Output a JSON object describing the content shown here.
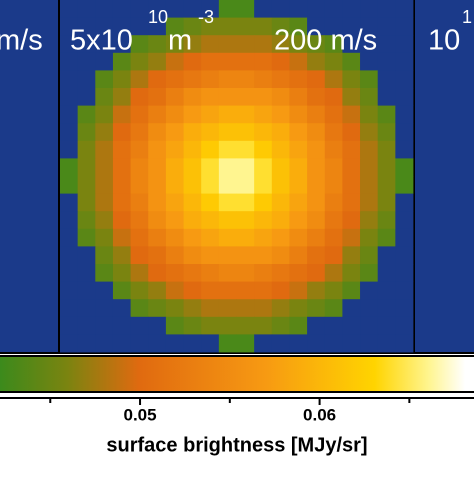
{
  "chart_data": {
    "type": "heatmap",
    "panel_labels": {
      "left": "m/s",
      "center_base": "5x10",
      "center_exp": "10",
      "center_unit": "m",
      "center_unit_exp": "-3",
      "center_speed": "200 m/s",
      "right_base": "10",
      "right_exp": "1"
    },
    "z": [
      [
        0,
        0,
        0,
        0,
        0,
        0,
        0,
        0,
        0,
        0.043,
        0.043,
        0,
        0,
        0,
        0,
        0,
        0,
        0,
        0,
        0
      ],
      [
        0,
        0,
        0,
        0,
        0,
        0,
        0.044,
        0.045,
        0.046,
        0.046,
        0.046,
        0.046,
        0.045,
        0.044,
        0,
        0,
        0,
        0,
        0,
        0
      ],
      [
        0,
        0,
        0,
        0,
        0.044,
        0.045,
        0.046,
        0.047,
        0.048,
        0.048,
        0.048,
        0.048,
        0.047,
        0.046,
        0.045,
        0.044,
        0,
        0,
        0,
        0
      ],
      [
        0,
        0,
        0,
        0.044,
        0.046,
        0.047,
        0.049,
        0.05,
        0.051,
        0.051,
        0.051,
        0.051,
        0.05,
        0.049,
        0.047,
        0.046,
        0.044,
        0,
        0,
        0
      ],
      [
        0,
        0,
        0.044,
        0.046,
        0.048,
        0.05,
        0.051,
        0.052,
        0.053,
        0.054,
        0.054,
        0.053,
        0.052,
        0.051,
        0.05,
        0.048,
        0.046,
        0.044,
        0,
        0
      ],
      [
        0,
        0,
        0.045,
        0.047,
        0.05,
        0.051,
        0.053,
        0.055,
        0.056,
        0.056,
        0.056,
        0.056,
        0.055,
        0.053,
        0.051,
        0.05,
        0.047,
        0.045,
        0,
        0
      ],
      [
        0,
        0.044,
        0.046,
        0.049,
        0.051,
        0.053,
        0.055,
        0.057,
        0.058,
        0.059,
        0.059,
        0.058,
        0.057,
        0.055,
        0.053,
        0.051,
        0.049,
        0.046,
        0.044,
        0
      ],
      [
        0,
        0.045,
        0.047,
        0.05,
        0.052,
        0.055,
        0.057,
        0.059,
        0.06,
        0.061,
        0.061,
        0.06,
        0.059,
        0.057,
        0.055,
        0.052,
        0.05,
        0.047,
        0.045,
        0
      ],
      [
        0,
        0.046,
        0.048,
        0.051,
        0.053,
        0.056,
        0.058,
        0.06,
        0.062,
        0.064,
        0.064,
        0.062,
        0.06,
        0.058,
        0.056,
        0.053,
        0.051,
        0.048,
        0.046,
        0
      ],
      [
        0.043,
        0.046,
        0.048,
        0.051,
        0.054,
        0.056,
        0.059,
        0.061,
        0.064,
        0.066,
        0.066,
        0.064,
        0.061,
        0.059,
        0.056,
        0.054,
        0.051,
        0.048,
        0.046,
        0.043
      ],
      [
        0.043,
        0.046,
        0.048,
        0.051,
        0.054,
        0.056,
        0.059,
        0.061,
        0.064,
        0.066,
        0.066,
        0.064,
        0.061,
        0.059,
        0.056,
        0.054,
        0.051,
        0.048,
        0.046,
        0.043
      ],
      [
        0,
        0.046,
        0.048,
        0.051,
        0.053,
        0.056,
        0.058,
        0.06,
        0.062,
        0.064,
        0.064,
        0.062,
        0.06,
        0.058,
        0.056,
        0.053,
        0.051,
        0.048,
        0.046,
        0
      ],
      [
        0,
        0.045,
        0.047,
        0.05,
        0.052,
        0.055,
        0.057,
        0.059,
        0.06,
        0.061,
        0.061,
        0.06,
        0.059,
        0.057,
        0.055,
        0.052,
        0.05,
        0.047,
        0.045,
        0
      ],
      [
        0,
        0.044,
        0.046,
        0.049,
        0.051,
        0.053,
        0.055,
        0.057,
        0.058,
        0.059,
        0.059,
        0.058,
        0.057,
        0.055,
        0.053,
        0.051,
        0.049,
        0.046,
        0.044,
        0
      ],
      [
        0,
        0,
        0.045,
        0.047,
        0.05,
        0.051,
        0.053,
        0.055,
        0.056,
        0.056,
        0.056,
        0.056,
        0.055,
        0.053,
        0.051,
        0.05,
        0.047,
        0.045,
        0,
        0
      ],
      [
        0,
        0,
        0.044,
        0.046,
        0.048,
        0.05,
        0.051,
        0.052,
        0.053,
        0.054,
        0.054,
        0.053,
        0.052,
        0.051,
        0.05,
        0.048,
        0.046,
        0.044,
        0,
        0
      ],
      [
        0,
        0,
        0,
        0.044,
        0.046,
        0.047,
        0.049,
        0.05,
        0.051,
        0.051,
        0.051,
        0.051,
        0.05,
        0.049,
        0.047,
        0.046,
        0.044,
        0,
        0,
        0
      ],
      [
        0,
        0,
        0,
        0,
        0.044,
        0.045,
        0.046,
        0.047,
        0.048,
        0.048,
        0.048,
        0.048,
        0.047,
        0.046,
        0.045,
        0.044,
        0,
        0,
        0,
        0
      ],
      [
        0,
        0,
        0,
        0,
        0,
        0,
        0.044,
        0.045,
        0.046,
        0.046,
        0.046,
        0.046,
        0.045,
        0.044,
        0,
        0,
        0,
        0,
        0,
        0
      ],
      [
        0,
        0,
        0,
        0,
        0,
        0,
        0,
        0,
        0,
        0.043,
        0.043,
        0,
        0,
        0,
        0,
        0,
        0,
        0,
        0,
        0
      ]
    ],
    "under_color": "#1b3a8a",
    "colorscale": [
      [
        0.042,
        "#3a8a1c"
      ],
      [
        0.046,
        "#7a8410"
      ],
      [
        0.05,
        "#e06a10"
      ],
      [
        0.057,
        "#f79a12"
      ],
      [
        0.063,
        "#ffd400"
      ],
      [
        0.066,
        "#fff590"
      ],
      [
        0.068,
        "#ffffff"
      ]
    ],
    "xlim": [
      0.0422,
      0.0686
    ],
    "xticks": [
      0.05,
      0.06
    ],
    "minor_xticks": [
      0.045,
      0.055,
      0.065
    ],
    "xlabel": "surface brightness [MJy/sr]"
  }
}
